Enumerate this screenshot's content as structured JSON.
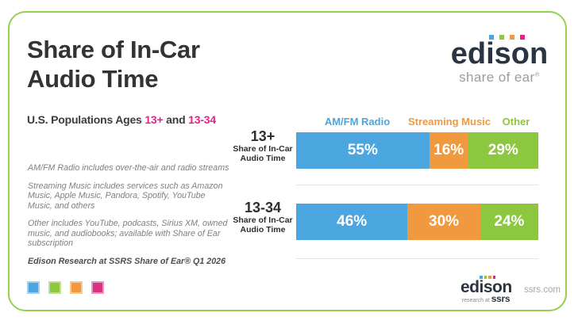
{
  "header": {
    "title_lines": [
      "Share of In-Car",
      "Audio Time"
    ],
    "subtitle": {
      "prefix": "U.S. Populations Ages ",
      "age_group_1": "13+",
      "connector": " and ",
      "age_group_2": "13-34"
    }
  },
  "logo_top": {
    "wordmark": "edison",
    "tagline": "share of ear",
    "registered_mark": "®"
  },
  "logo_bottom": {
    "wordmark": "edison",
    "sub_prefix": "research at",
    "sub_brand": "ssrs",
    "website": "ssrs.com"
  },
  "footnotes": [
    "AM/FM Radio includes over-the-air and radio streams",
    "Streaming Music includes services such as Amazon Music, Apple Music, Pandora, Spotify, YouTube Music, and others",
    "Other includes YouTube, podcasts, Sirius XM, owned music, and audiobooks; available with Share of Ear subscription"
  ],
  "source_line": "Edison Research at SSRS Share of Ear® Q1 2026",
  "brand_colors": {
    "blue": "#4BA6DF",
    "green": "#8DC63F",
    "orange": "#F0993F",
    "pink": "#D8337F",
    "pink_text": "#EC1E8C",
    "card_border_green": "#93D14F",
    "navy": "#2B3441"
  },
  "brand_squares": [
    {
      "color": "#4BA6DF",
      "border": "#A3D2EF"
    },
    {
      "color": "#8DC63F",
      "border": "#C3DF97"
    },
    {
      "color": "#F0993F",
      "border": "#F6CA96"
    },
    {
      "color": "#D8337F",
      "border": "#EB9BC3"
    }
  ],
  "logo_dots": [
    "#4BA6DF",
    "#8DC63F",
    "#F0993F",
    "#EC1E8C"
  ],
  "chart_data": {
    "type": "bar",
    "stacked": true,
    "orientation": "horizontal",
    "unit": "percent",
    "xlim": [
      0,
      100
    ],
    "legend_position": "top",
    "title": "Share of In-Car Audio Time",
    "categories": [
      "13+",
      "13-34"
    ],
    "category_sublabel": "Share of In-Car Audio Time",
    "legend_items": [
      {
        "label": "AM/FM Radio",
        "color": "#4BA6DF"
      },
      {
        "label": "Streaming Music",
        "color": "#F0993F"
      },
      {
        "label": "Other",
        "color": "#8DC63F"
      }
    ],
    "series": [
      {
        "name": "AM/FM Radio",
        "color": "#4BA6DF",
        "values": [
          55,
          46
        ]
      },
      {
        "name": "Streaming Music",
        "color": "#F0993F",
        "values": [
          16,
          30
        ]
      },
      {
        "name": "Other",
        "color": "#8DC63F",
        "values": [
          29,
          24
        ]
      }
    ],
    "rows": [
      {
        "category": "13+",
        "sublabel_lines": [
          "Share of In-Car",
          "Audio Time"
        ],
        "segments": [
          {
            "series": "AM/FM Radio",
            "value": 55,
            "label": "55%",
            "color": "#4BA6DF"
          },
          {
            "series": "Streaming Music",
            "value": 16,
            "label": "16%",
            "color": "#F0993F"
          },
          {
            "series": "Other",
            "value": 29,
            "label": "29%",
            "color": "#8DC63F"
          }
        ]
      },
      {
        "category": "13-34",
        "sublabel_lines": [
          "Share of In-Car",
          "Audio Time"
        ],
        "segments": [
          {
            "series": "AM/FM Radio",
            "value": 46,
            "label": "46%",
            "color": "#4BA6DF"
          },
          {
            "series": "Streaming Music",
            "value": 30,
            "label": "30%",
            "color": "#F0993F"
          },
          {
            "series": "Other",
            "value": 24,
            "label": "24%",
            "color": "#8DC63F"
          }
        ]
      }
    ]
  }
}
